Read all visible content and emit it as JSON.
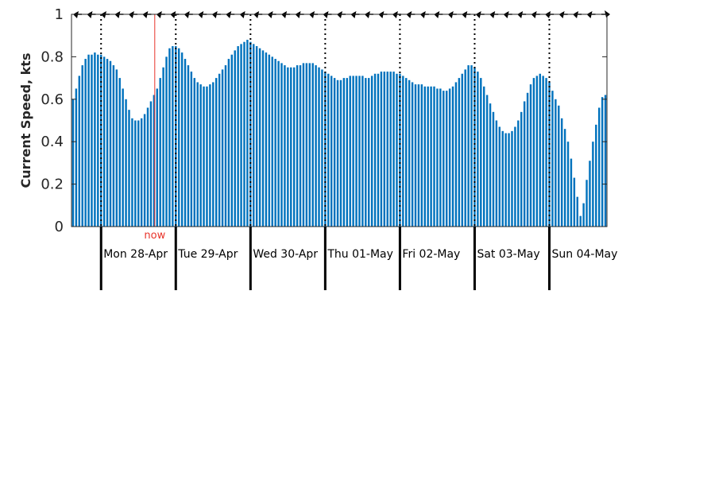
{
  "colors": {
    "bar": "#0072BD",
    "now_line": "#E8332A",
    "axis": "#262626",
    "day_tick": "#000000",
    "arrow": "#000000"
  },
  "chart_data": {
    "type": "bar",
    "title": "",
    "ylabel": "Current Speed, kts",
    "xlabel": "",
    "ylim": [
      0,
      1
    ],
    "yticks": [
      "0",
      "0.2",
      "0.4",
      "0.6",
      "0.8",
      "1"
    ],
    "grid": false,
    "legend": "none",
    "now_label": "now",
    "now_index": 27,
    "day_labels": [
      "Mon 28-Apr",
      "Tue 29-Apr",
      "Wed 30-Apr",
      "Thu 01-May",
      "Fri 02-May",
      "Sat 03-May",
      "Sun 04-May"
    ],
    "midnight_indices": [
      9,
      33,
      57,
      81,
      105,
      129,
      153
    ],
    "hourly_speed_kts": [
      0.6,
      0.65,
      0.71,
      0.76,
      0.79,
      0.81,
      0.81,
      0.82,
      0.81,
      0.81,
      0.8,
      0.79,
      0.78,
      0.76,
      0.74,
      0.7,
      0.65,
      0.6,
      0.55,
      0.51,
      0.5,
      0.5,
      0.51,
      0.53,
      0.56,
      0.59,
      0.62,
      0.65,
      0.7,
      0.75,
      0.8,
      0.84,
      0.85,
      0.85,
      0.84,
      0.82,
      0.79,
      0.76,
      0.73,
      0.7,
      0.68,
      0.67,
      0.66,
      0.66,
      0.67,
      0.68,
      0.7,
      0.72,
      0.74,
      0.76,
      0.79,
      0.81,
      0.83,
      0.85,
      0.86,
      0.87,
      0.88,
      0.87,
      0.86,
      0.85,
      0.84,
      0.83,
      0.82,
      0.81,
      0.8,
      0.79,
      0.78,
      0.77,
      0.76,
      0.75,
      0.75,
      0.75,
      0.76,
      0.76,
      0.77,
      0.77,
      0.77,
      0.77,
      0.76,
      0.75,
      0.74,
      0.73,
      0.72,
      0.71,
      0.7,
      0.69,
      0.69,
      0.7,
      0.7,
      0.71,
      0.71,
      0.71,
      0.71,
      0.71,
      0.7,
      0.7,
      0.71,
      0.72,
      0.72,
      0.73,
      0.73,
      0.73,
      0.73,
      0.73,
      0.72,
      0.72,
      0.71,
      0.7,
      0.69,
      0.68,
      0.67,
      0.67,
      0.67,
      0.66,
      0.66,
      0.66,
      0.66,
      0.65,
      0.65,
      0.64,
      0.64,
      0.65,
      0.66,
      0.68,
      0.7,
      0.72,
      0.74,
      0.76,
      0.76,
      0.75,
      0.73,
      0.7,
      0.66,
      0.62,
      0.58,
      0.54,
      0.5,
      0.47,
      0.45,
      0.44,
      0.44,
      0.45,
      0.47,
      0.5,
      0.54,
      0.59,
      0.63,
      0.67,
      0.7,
      0.71,
      0.72,
      0.71,
      0.7,
      0.68,
      0.64,
      0.6,
      0.57,
      0.51,
      0.46,
      0.4,
      0.32,
      0.23,
      0.14,
      0.05,
      0.11,
      0.22,
      0.31,
      0.4,
      0.48,
      0.56,
      0.61,
      0.62
    ],
    "direction_arrows": [
      "left",
      "left",
      "left",
      "left",
      "left",
      "left",
      "left",
      "left",
      "left",
      "left",
      "left",
      "left",
      "left",
      "left",
      "left",
      "left",
      "left",
      "left",
      "left",
      "left",
      "left",
      "left",
      "left",
      "left",
      "left",
      "left",
      "left",
      "left",
      "left",
      "left",
      "left",
      "left",
      "left",
      "left",
      "left",
      "left",
      "left",
      "left",
      "right"
    ]
  }
}
